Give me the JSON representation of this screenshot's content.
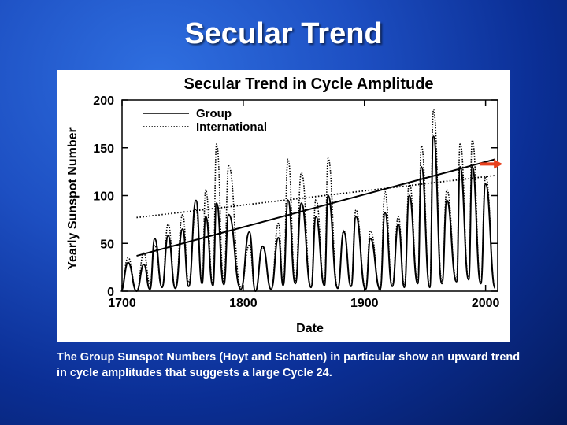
{
  "slide": {
    "title": "Secular Trend",
    "caption": "The Group Sunspot Numbers (Hoyt and Schatten) in particular show an upward trend in cycle amplitudes that suggests a large Cycle 24."
  },
  "chart_data": {
    "type": "line",
    "title": "Secular Trend in Cycle Amplitude",
    "xlabel": "Date",
    "ylabel": "Yearly Sunspot Number",
    "xlim": [
      1700,
      2010
    ],
    "ylim": [
      0,
      200
    ],
    "xticks": [
      1700,
      1800,
      1900,
      2000
    ],
    "yticks": [
      0,
      50,
      100,
      150,
      200
    ],
    "xtick_labels": [
      "1700",
      "1800",
      "1900",
      "2000"
    ],
    "ytick_labels": [
      "0",
      "50",
      "100",
      "150",
      "200"
    ],
    "legend_position": "top-left",
    "legend": [
      "Group",
      "International"
    ],
    "cycle_peaks": {
      "years": [
        1705,
        1718,
        1727,
        1738,
        1750,
        1761,
        1769,
        1778,
        1788,
        1805,
        1816,
        1829,
        1837,
        1848,
        1860,
        1870,
        1883,
        1893,
        1905,
        1917,
        1928,
        1937,
        1947,
        1957,
        1968,
        1979,
        1989,
        2000
      ],
      "group": [
        30,
        28,
        55,
        58,
        65,
        95,
        78,
        92,
        80,
        62,
        47,
        56,
        95,
        92,
        78,
        100,
        62,
        78,
        55,
        82,
        70,
        100,
        130,
        162,
        95,
        130,
        130,
        112
      ],
      "international": [
        35,
        40,
        48,
        70,
        80,
        86,
        106,
        154,
        131,
        48,
        46,
        71,
        138,
        124,
        96,
        139,
        64,
        85,
        63,
        104,
        78,
        114,
        152,
        190,
        106,
        155,
        158,
        120
      ]
    },
    "cycle_minima": {
      "years": [
        1712,
        1723,
        1733,
        1744,
        1755,
        1766,
        1775,
        1784,
        1798,
        1810,
        1823,
        1833,
        1843,
        1856,
        1867,
        1878,
        1889,
        1901,
        1913,
        1923,
        1933,
        1944,
        1954,
        1964,
        1976,
        1986,
        1996,
        2008
      ],
      "group": [
        0,
        2,
        4,
        3,
        5,
        8,
        6,
        7,
        2,
        0,
        2,
        6,
        8,
        4,
        6,
        3,
        5,
        2,
        2,
        5,
        4,
        8,
        4,
        8,
        10,
        12,
        8,
        3
      ],
      "international": [
        0,
        8,
        4,
        3,
        9,
        11,
        7,
        10,
        4,
        0,
        2,
        7,
        10,
        4,
        7,
        3,
        6,
        3,
        1,
        6,
        6,
        10,
        4,
        10,
        12,
        13,
        9,
        3
      ]
    },
    "trend_lines": [
      {
        "name": "Group",
        "style": "solid",
        "x": [
          1712,
          2008
        ],
        "y": [
          37,
          138
        ]
      },
      {
        "name": "International",
        "style": "dotted",
        "x": [
          1712,
          2008
        ],
        "y": [
          77,
          121
        ]
      }
    ],
    "annotations": [
      {
        "type": "arrow",
        "x": [
          1995,
          2014
        ],
        "y": [
          133,
          133
        ],
        "color": "#e8401c"
      }
    ]
  }
}
